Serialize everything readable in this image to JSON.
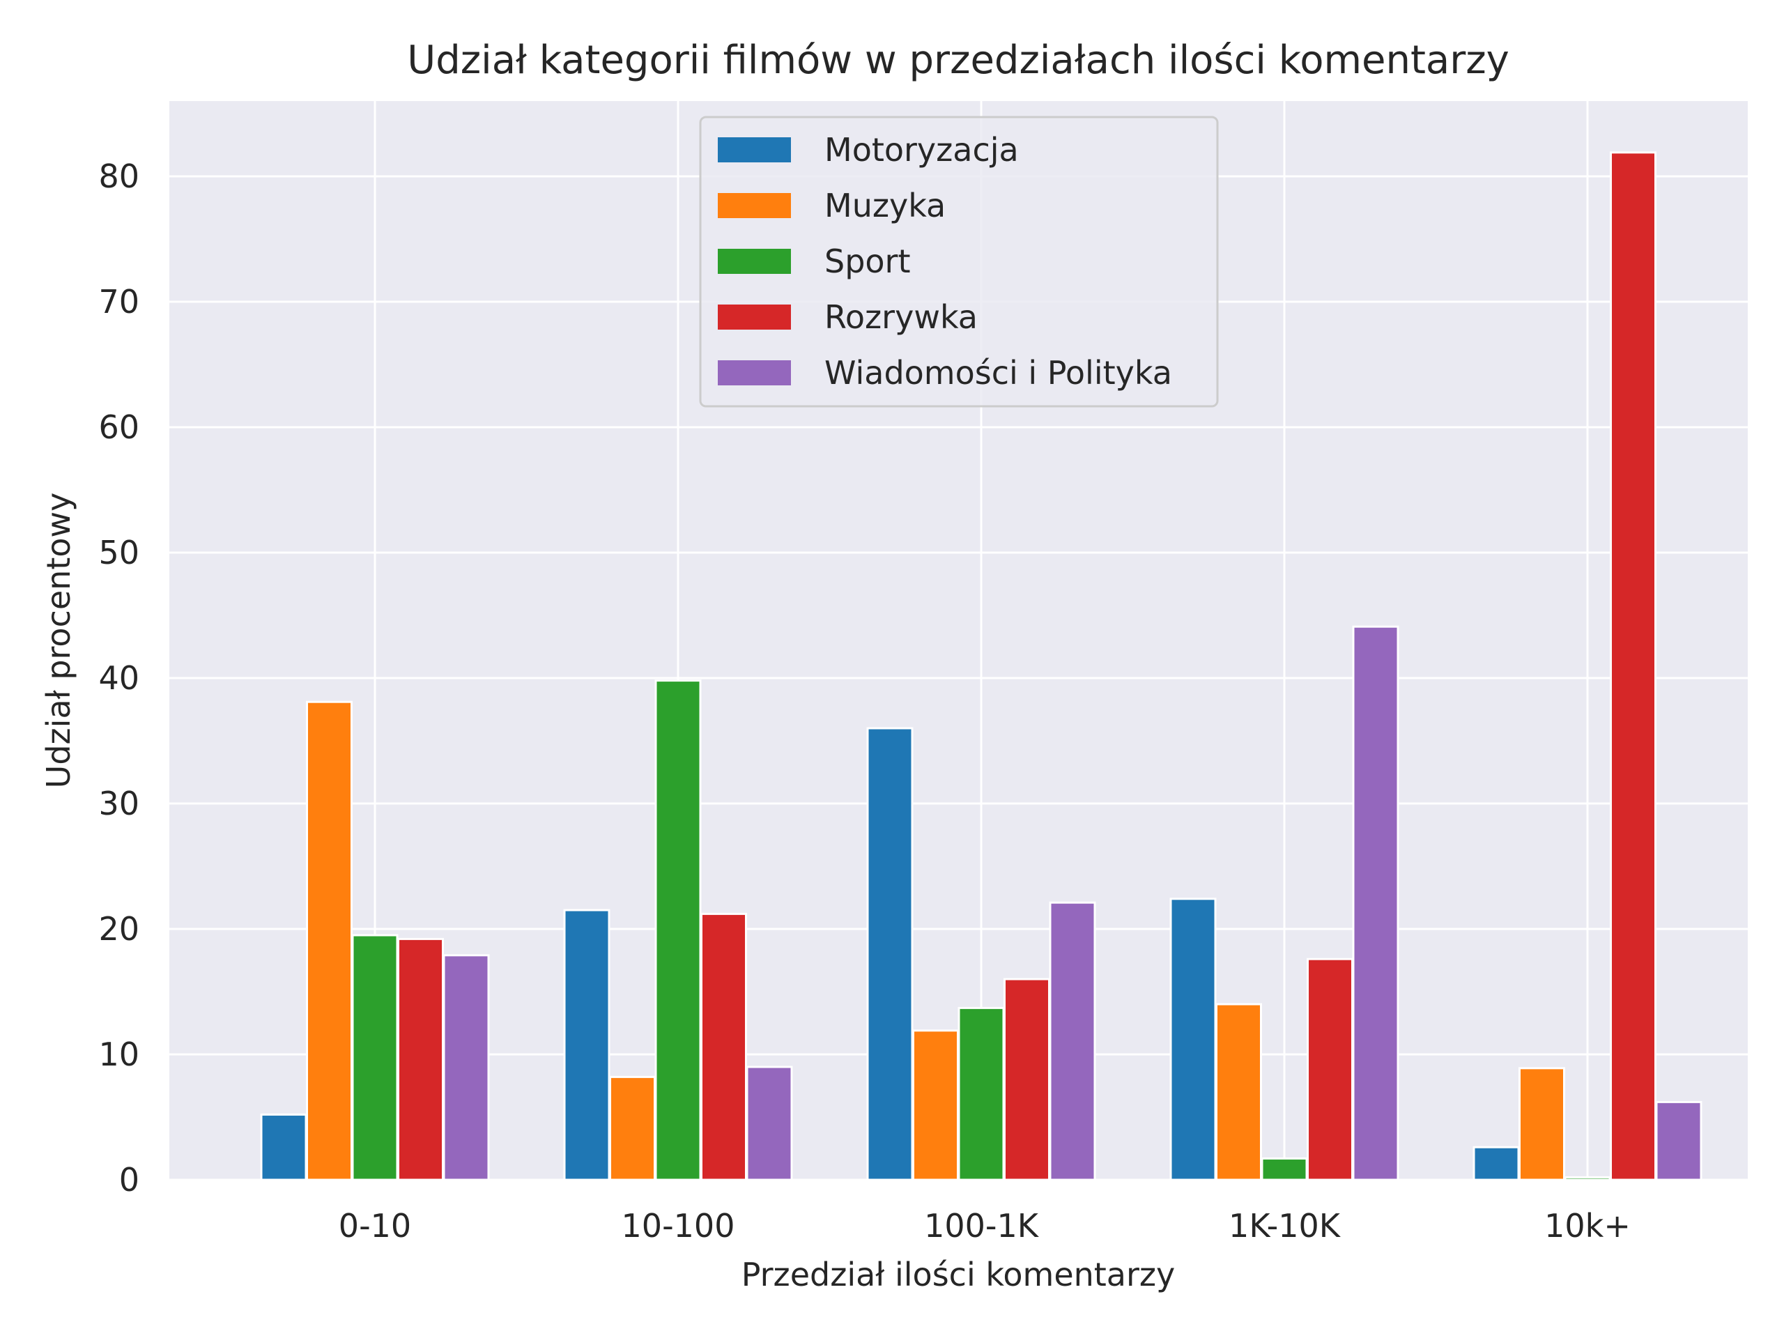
{
  "chart_data": {
    "type": "bar",
    "title": "Udział kategorii filmów w przedziałach ilości komentarzy",
    "xlabel": "Przedział ilości komentarzy",
    "ylabel": "Udział procentowy",
    "categories": [
      "0-10",
      "10-100",
      "100-1K",
      "1K-10K",
      "10k+"
    ],
    "series": [
      {
        "name": "Motoryzacja",
        "color": "#1f77b4",
        "values": [
          5.2,
          21.5,
          36.0,
          22.4,
          2.6
        ]
      },
      {
        "name": "Muzyka",
        "color": "#ff7f0e",
        "values": [
          38.1,
          8.2,
          11.9,
          14.0,
          8.9
        ]
      },
      {
        "name": "Sport",
        "color": "#2ca02c",
        "values": [
          19.5,
          39.8,
          13.7,
          1.7,
          0.2
        ]
      },
      {
        "name": "Rozrywka",
        "color": "#d62728",
        "values": [
          19.2,
          21.2,
          16.0,
          17.6,
          81.9
        ]
      },
      {
        "name": "Wiadomości i Polityka",
        "color": "#9467bd",
        "values": [
          17.9,
          9.0,
          22.1,
          44.1,
          6.2
        ]
      }
    ],
    "ylim": [
      0,
      86
    ],
    "yticks": [
      0,
      10,
      20,
      30,
      40,
      50,
      60,
      70,
      80
    ],
    "grid": true,
    "legend_position": "top-center",
    "background": "#eaeaf2"
  }
}
